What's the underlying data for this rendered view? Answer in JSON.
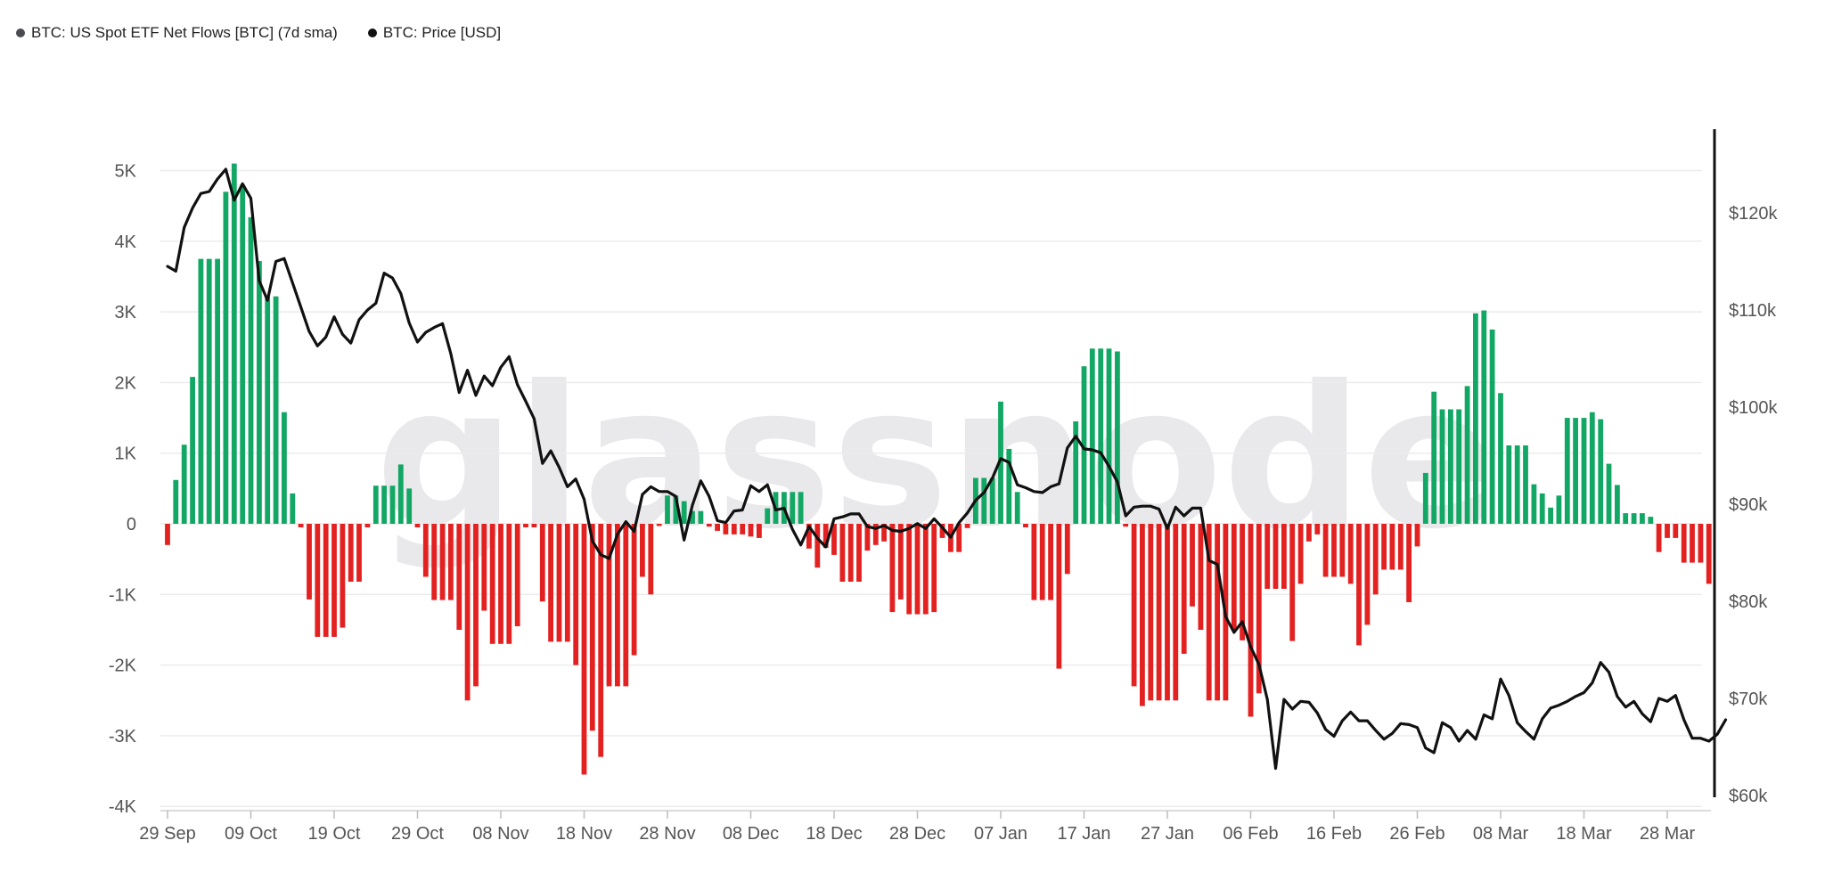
{
  "legend": {
    "items": [
      {
        "label": "BTC: US Spot ETF Net Flows [BTC] (7d sma)",
        "color": "#4a4a52"
      },
      {
        "label": "BTC: Price [USD]",
        "color": "#111111"
      }
    ]
  },
  "watermark": "glassnode",
  "colors": {
    "positive": "#12a764",
    "negative": "#e32121",
    "price": "#111111",
    "grid": "#ececec",
    "axis": "#cfcfcf"
  },
  "chart_data": {
    "type": "bar",
    "x_start": "29 Sep",
    "x_end": "28 Mar",
    "x_ticks": [
      "29 Sep",
      "09 Oct",
      "19 Oct",
      "29 Oct",
      "08 Nov",
      "18 Nov",
      "28 Nov",
      "08 Dec",
      "18 Dec",
      "28 Dec",
      "07 Jan",
      "17 Jan",
      "27 Jan",
      "06 Feb",
      "16 Feb",
      "26 Feb",
      "08 Mar",
      "18 Mar",
      "28 Mar"
    ],
    "x_tick_day_offsets": [
      0,
      10,
      20,
      30,
      40,
      50,
      60,
      70,
      80,
      90,
      100,
      110,
      120,
      130,
      140,
      150,
      160,
      170,
      180
    ],
    "left_axis": {
      "ylim": [
        -4000,
        5500
      ],
      "ticks": [
        -4000,
        -3000,
        -2000,
        -1000,
        0,
        1000,
        2000,
        3000,
        4000,
        5000
      ],
      "tick_labels": [
        "-4K",
        "-3K",
        "-2K",
        "-1K",
        "0",
        "1K",
        "2K",
        "3K",
        "4K",
        "5K"
      ]
    },
    "right_axis": {
      "ylim": [
        60000,
        127000
      ],
      "ticks": [
        60000,
        70000,
        80000,
        90000,
        100000,
        110000,
        120000
      ],
      "tick_labels": [
        "$60k",
        "$70k",
        "$80k",
        "$90k",
        "$100k",
        "$110k",
        "$120k"
      ]
    },
    "series": [
      {
        "name": "BTC: US Spot ETF Net Flows [BTC] (7d sma)",
        "type": "bar",
        "values": [
          -300,
          620,
          1120,
          2080,
          3750,
          3750,
          3750,
          4700,
          5100,
          4800,
          4340,
          3720,
          3220,
          3220,
          1580,
          430,
          -50,
          -1070,
          -1600,
          -1600,
          -1600,
          -1470,
          -820,
          -820,
          -50,
          540,
          540,
          540,
          840,
          500,
          -50,
          -750,
          -1080,
          -1080,
          -1080,
          -1500,
          -2500,
          -2300,
          -1230,
          -1700,
          -1700,
          -1700,
          -1450,
          -50,
          -50,
          -1100,
          -1670,
          -1670,
          -1670,
          -2000,
          -3550,
          -2930,
          -3300,
          -2300,
          -2300,
          -2300,
          -1860,
          -750,
          -1000,
          -30,
          400,
          400,
          320,
          180,
          180,
          -40,
          -100,
          -150,
          -150,
          -150,
          -180,
          -200,
          220,
          450,
          450,
          450,
          450,
          -350,
          -620,
          -340,
          -440,
          -820,
          -820,
          -820,
          -380,
          -300,
          -250,
          -1250,
          -1070,
          -1280,
          -1280,
          -1280,
          -1250,
          -200,
          -400,
          -400,
          -60,
          650,
          650,
          650,
          1730,
          1060,
          450,
          -50,
          -1080,
          -1080,
          -1080,
          -2050,
          -710,
          1450,
          2230,
          2480,
          2480,
          2480,
          2440,
          -40,
          -2300,
          -2580,
          -2500,
          -2500,
          -2500,
          -2500,
          -1840,
          -1170,
          -1500,
          -2500,
          -2500,
          -2500,
          -1500,
          -1650,
          -2730,
          -2400,
          -920,
          -920,
          -920,
          -1660,
          -850,
          -250,
          -150,
          -750,
          -750,
          -750,
          -850,
          -1720,
          -1430,
          -1000,
          -650,
          -650,
          -650,
          -1110,
          -320,
          720,
          1870,
          1620,
          1620,
          1620,
          1950,
          2980,
          3020,
          2750,
          1850,
          1110,
          1110,
          1110,
          560,
          430,
          230,
          400,
          1500,
          1500,
          1500,
          1580,
          1480,
          850,
          550,
          150,
          150,
          150,
          100,
          -400,
          -200,
          -200,
          -550,
          -550,
          -550,
          -850
        ]
      },
      {
        "name": "BTC: Price [USD]",
        "type": "line",
        "values": [
          114500,
          114000,
          118500,
          120500,
          122000,
          122200,
          123500,
          124500,
          121300,
          123000,
          121500,
          113000,
          111000,
          115000,
          115300,
          112800,
          110300,
          107800,
          106300,
          107200,
          109300,
          107500,
          106600,
          109000,
          110000,
          110700,
          113800,
          113300,
          111700,
          108700,
          106700,
          107700,
          108200,
          108600,
          105500,
          101500,
          103800,
          101200,
          103200,
          102200,
          104100,
          105200,
          102300,
          100600,
          98800,
          94200,
          95500,
          93800,
          91800,
          92600,
          90500,
          86200,
          84800,
          84400,
          86900,
          88200,
          87200,
          91000,
          91800,
          91300,
          91300,
          90800,
          86300,
          89900,
          92400,
          90800,
          88300,
          88100,
          89300,
          89400,
          91900,
          91300,
          92000,
          89400,
          89600,
          87400,
          85800,
          87700,
          86500,
          85600,
          88500,
          88700,
          89000,
          89000,
          87700,
          87500,
          87800,
          87300,
          87200,
          87500,
          88000,
          87500,
          88500,
          87600,
          86600,
          88100,
          89100,
          90400,
          91200,
          92700,
          94700,
          94300,
          92000,
          91700,
          91300,
          91200,
          91800,
          92100,
          95800,
          97000,
          95700,
          95600,
          95300,
          93900,
          92300,
          88800,
          89700,
          89800,
          89800,
          89500,
          87500,
          89700,
          88800,
          89600,
          89600,
          84200,
          83800,
          78400,
          76800,
          77900,
          75300,
          73500,
          69900,
          62800,
          69900,
          68900,
          69700,
          69600,
          68500,
          66800,
          66100,
          67700,
          68600,
          67700,
          67700,
          66700,
          65800,
          66400,
          67400,
          67300,
          67000,
          64900,
          64400,
          67500,
          67000,
          65600,
          66700,
          65800,
          68300,
          67900,
          72000,
          70300,
          67500,
          66600,
          65800,
          67900,
          69000,
          69300,
          69700,
          70200,
          70600,
          71600,
          73700,
          72700,
          70200,
          69100,
          69700,
          68400,
          67600,
          70000,
          69700,
          70300,
          67800,
          65900,
          65900,
          65600,
          66300,
          67800
        ]
      }
    ]
  }
}
